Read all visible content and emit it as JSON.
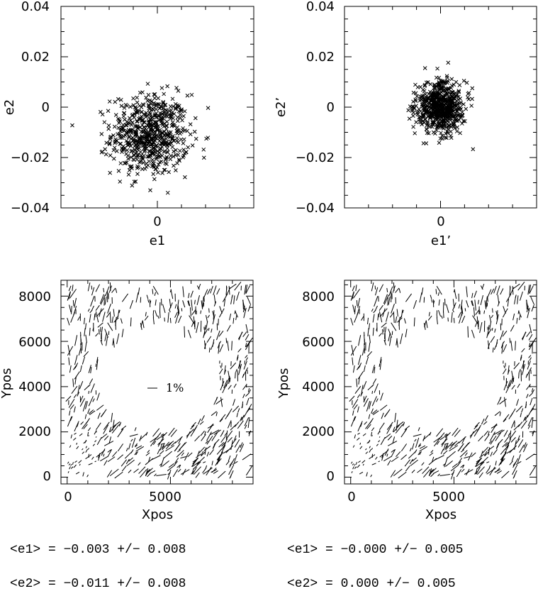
{
  "chart_data": [
    {
      "type": "scatter",
      "xlabel": "e1",
      "ylabel": "e2",
      "ylim": [
        -0.04,
        0.04
      ],
      "xlim": [
        -0.04,
        0.04
      ],
      "x_ticklabels": [
        "0"
      ],
      "y_ticklabels": [
        "-0.04",
        "-0.02",
        "0",
        "0.02",
        "0.04"
      ],
      "marker": "x",
      "cluster": {
        "center": [
          -0.003,
          -0.011
        ],
        "spread": [
          0.008,
          0.008
        ],
        "n_points": 650
      }
    },
    {
      "type": "scatter",
      "xlabel": "e1’",
      "ylabel": "e2’",
      "ylim": [
        -0.04,
        0.04
      ],
      "xlim": [
        -0.04,
        0.04
      ],
      "x_ticklabels": [
        "0"
      ],
      "y_ticklabels": [
        "-0.04",
        "-0.02",
        "0",
        "0.02",
        "0.04"
      ],
      "marker": "x",
      "cluster": {
        "center": [
          0.0,
          0.0
        ],
        "spread": [
          0.005,
          0.005
        ],
        "n_points": 650
      }
    },
    {
      "type": "vector-field",
      "xlabel": "Xpos",
      "ylabel": "Ypos",
      "xlim": [
        -300,
        9000
      ],
      "ylim": [
        -300,
        8700
      ],
      "x_ticks": [
        0,
        5000
      ],
      "y_ticks": [
        0,
        2000,
        4000,
        6000,
        8000
      ],
      "scale_label": "1%",
      "stats": [
        "<e1> = -0.003 +/- 0.008",
        "<e2> = -0.011 +/- 0.008"
      ]
    },
    {
      "type": "vector-field",
      "xlabel": "Xpos",
      "ylabel": "Ypos",
      "xlim": [
        -300,
        9000
      ],
      "ylim": [
        -300,
        8700
      ],
      "x_ticks": [
        0,
        5000
      ],
      "y_ticks": [
        0,
        2000,
        4000,
        6000,
        8000
      ],
      "stats": [
        "<e1> = -0.000 +/- 0.005",
        "<e2> = 0.000 +/- 0.005"
      ]
    }
  ]
}
